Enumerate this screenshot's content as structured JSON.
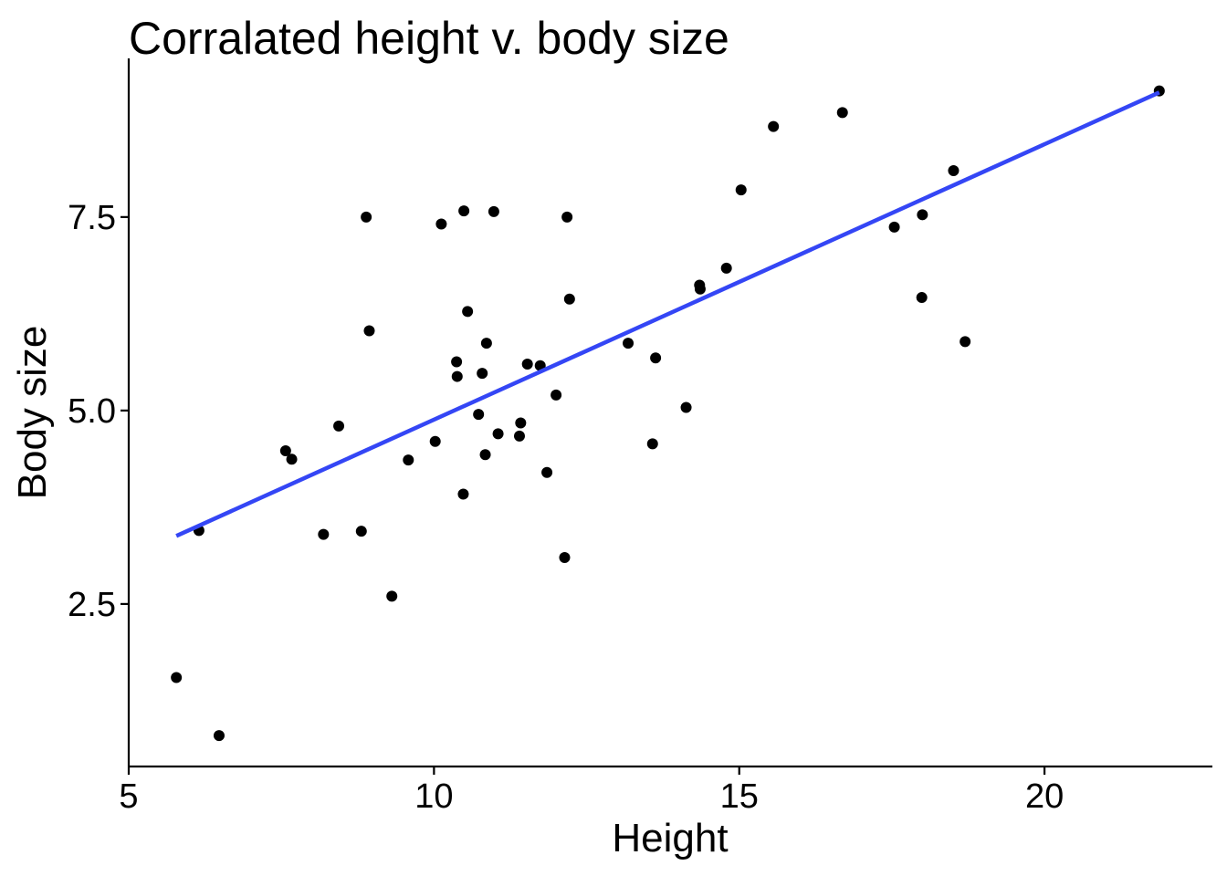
{
  "chart_data": {
    "type": "scatter",
    "title": "Corralated height v. body size",
    "xlabel": "Height",
    "ylabel": "Body size",
    "xlim": [
      5,
      22.75
    ],
    "ylim": [
      0.4,
      9.55
    ],
    "x_ticks": [
      5,
      10,
      15,
      20
    ],
    "x_tick_labels": [
      "5",
      "10",
      "15",
      "20"
    ],
    "y_ticks": [
      2.5,
      5.0,
      7.5
    ],
    "y_tick_labels": [
      "2.5",
      "5.0",
      "7.5"
    ],
    "grid": false,
    "legend": "none",
    "point_color": "#000000",
    "points": [
      {
        "x": 5.78,
        "y": 1.55
      },
      {
        "x": 6.15,
        "y": 3.45
      },
      {
        "x": 6.48,
        "y": 0.8
      },
      {
        "x": 7.57,
        "y": 4.48
      },
      {
        "x": 7.67,
        "y": 4.37
      },
      {
        "x": 8.19,
        "y": 3.4
      },
      {
        "x": 8.44,
        "y": 4.8
      },
      {
        "x": 8.81,
        "y": 3.44
      },
      {
        "x": 8.89,
        "y": 7.5
      },
      {
        "x": 8.94,
        "y": 6.03
      },
      {
        "x": 9.31,
        "y": 2.6
      },
      {
        "x": 9.58,
        "y": 4.36
      },
      {
        "x": 10.02,
        "y": 4.6
      },
      {
        "x": 10.12,
        "y": 7.41
      },
      {
        "x": 10.37,
        "y": 5.63
      },
      {
        "x": 10.38,
        "y": 5.44
      },
      {
        "x": 10.48,
        "y": 3.92
      },
      {
        "x": 10.49,
        "y": 7.58
      },
      {
        "x": 10.55,
        "y": 6.28
      },
      {
        "x": 10.73,
        "y": 4.95
      },
      {
        "x": 10.79,
        "y": 5.48
      },
      {
        "x": 10.84,
        "y": 4.43
      },
      {
        "x": 10.86,
        "y": 5.87
      },
      {
        "x": 10.98,
        "y": 7.57
      },
      {
        "x": 11.05,
        "y": 4.7
      },
      {
        "x": 11.4,
        "y": 4.67
      },
      {
        "x": 11.42,
        "y": 4.84
      },
      {
        "x": 11.53,
        "y": 5.6
      },
      {
        "x": 11.74,
        "y": 5.58
      },
      {
        "x": 11.85,
        "y": 4.2
      },
      {
        "x": 12.0,
        "y": 5.2
      },
      {
        "x": 12.14,
        "y": 3.1
      },
      {
        "x": 12.18,
        "y": 7.5
      },
      {
        "x": 12.22,
        "y": 6.44
      },
      {
        "x": 13.18,
        "y": 5.87
      },
      {
        "x": 13.58,
        "y": 4.57
      },
      {
        "x": 13.63,
        "y": 5.68
      },
      {
        "x": 14.13,
        "y": 5.04
      },
      {
        "x": 14.35,
        "y": 6.62
      },
      {
        "x": 14.36,
        "y": 6.57
      },
      {
        "x": 14.79,
        "y": 6.84
      },
      {
        "x": 15.03,
        "y": 7.85
      },
      {
        "x": 15.56,
        "y": 8.67
      },
      {
        "x": 16.69,
        "y": 8.85
      },
      {
        "x": 17.54,
        "y": 7.37
      },
      {
        "x": 17.99,
        "y": 6.46
      },
      {
        "x": 18.0,
        "y": 7.53
      },
      {
        "x": 18.51,
        "y": 8.1
      },
      {
        "x": 18.7,
        "y": 5.89
      },
      {
        "x": 21.88,
        "y": 9.13
      }
    ],
    "series": [
      {
        "type": "line",
        "color": "#3446f5",
        "x": [
          5.78,
          21.88
        ],
        "y": [
          3.38,
          9.11
        ]
      }
    ]
  }
}
